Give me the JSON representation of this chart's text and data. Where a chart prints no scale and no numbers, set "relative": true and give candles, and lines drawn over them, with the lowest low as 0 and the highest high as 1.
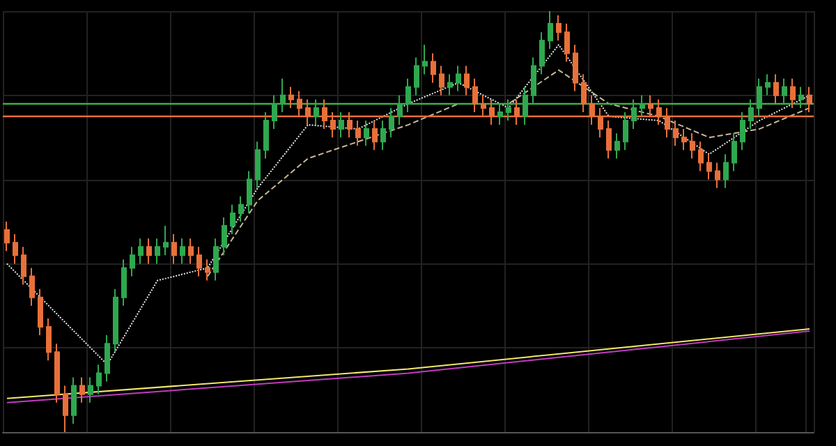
{
  "chart_data": {
    "type": "candlestick",
    "relative": true,
    "grid": true,
    "marker": "none",
    "categories": [
      null,
      null,
      null,
      null,
      null,
      null,
      null,
      null,
      null,
      null,
      null,
      null,
      null,
      null,
      null,
      null,
      null,
      null,
      null,
      null,
      null,
      null,
      null,
      null,
      null,
      null,
      null,
      null,
      null,
      null,
      null,
      null,
      null,
      null,
      null,
      null,
      null,
      null,
      null,
      null,
      null,
      null,
      null,
      null,
      null,
      null,
      null,
      null,
      null,
      null,
      null,
      null,
      null,
      null,
      null,
      null,
      null,
      null,
      null,
      null,
      null,
      null,
      null,
      null,
      null,
      null,
      null,
      null,
      null,
      null,
      null,
      null,
      null,
      null,
      null,
      null,
      null,
      null,
      null,
      null,
      null,
      null,
      null,
      null,
      null,
      null,
      null,
      null,
      null,
      null,
      null,
      null,
      null,
      null,
      null,
      null,
      null
    ],
    "colors": [
      "#e8703a",
      "#e8703a",
      "#e8703a",
      "#e8703a",
      "#e8703a",
      "#e8703a",
      "#e8703a",
      "#e8703a",
      "#2fa84f",
      "#e8703a",
      "#2fa84f",
      "#2fa84f",
      "#2fa84f",
      "#2fa84f",
      "#2fa84f",
      "#2fa84f",
      "#2fa84f",
      "#e8703a",
      "#2fa84f",
      "#2fa84f",
      "#e8703a",
      "#2fa84f",
      "#e8703a",
      "#e8703a",
      "#e8703a",
      "#2fa84f",
      "#2fa84f",
      "#2fa84f",
      "#2fa84f",
      "#2fa84f",
      "#2fa84f",
      "#2fa84f",
      "#2fa84f",
      "#2fa84f",
      "#e8703a",
      "#e8703a",
      "#e8703a",
      "#2fa84f",
      "#e8703a",
      "#e8703a",
      "#2fa84f",
      "#e8703a",
      "#e8703a",
      "#2fa84f",
      "#e8703a",
      "#2fa84f",
      "#2fa84f",
      "#2fa84f",
      "#2fa84f",
      "#2fa84f",
      "#2fa84f",
      "#e8703a",
      "#e8703a",
      "#2fa84f",
      "#2fa84f",
      "#e8703a",
      "#e8703a",
      "#e8703a",
      "#e8703a",
      "#2fa84f",
      "#2fa84f",
      "#e8703a",
      "#2fa84f",
      "#2fa84f",
      "#2fa84f",
      "#2fa84f",
      "#e8703a",
      "#e8703a",
      "#e8703a",
      "#e8703a",
      "#e8703a",
      "#e8703a",
      "#e8703a",
      "#2fa84f",
      "#2fa84f",
      "#2fa84f",
      "#2fa84f",
      "#e8703a",
      "#e8703a",
      "#e8703a",
      "#e8703a",
      "#e8703a",
      "#e8703a",
      "#e8703a",
      "#e8703a",
      "#e8703a",
      "#2fa84f",
      "#2fa84f",
      "#2fa84f",
      "#2fa84f",
      "#2fa84f",
      "#2fa84f",
      "#e8703a",
      "#2fa84f",
      "#e8703a",
      "#2fa84f",
      "#e8703a"
    ],
    "ohlc": [
      [
        0.48,
        0.5,
        0.43,
        0.45
      ],
      [
        0.45,
        0.47,
        0.4,
        0.42
      ],
      [
        0.42,
        0.44,
        0.35,
        0.37
      ],
      [
        0.37,
        0.39,
        0.3,
        0.32
      ],
      [
        0.32,
        0.34,
        0.23,
        0.25
      ],
      [
        0.25,
        0.27,
        0.17,
        0.19
      ],
      [
        0.19,
        0.21,
        0.07,
        0.09
      ],
      [
        0.09,
        0.11,
        0,
        0.04
      ],
      [
        0.04,
        0.13,
        0.02,
        0.11
      ],
      [
        0.11,
        0.13,
        0.07,
        0.09
      ],
      [
        0.09,
        0.13,
        0.07,
        0.11
      ],
      [
        0.11,
        0.16,
        0.09,
        0.14
      ],
      [
        0.14,
        0.23,
        0.12,
        0.21
      ],
      [
        0.21,
        0.34,
        0.19,
        0.32
      ],
      [
        0.32,
        0.41,
        0.3,
        0.39
      ],
      [
        0.39,
        0.44,
        0.37,
        0.42
      ],
      [
        0.42,
        0.46,
        0.4,
        0.44
      ],
      [
        0.44,
        0.46,
        0.4,
        0.42
      ],
      [
        0.42,
        0.46,
        0.4,
        0.44
      ],
      [
        0.44,
        0.49,
        0.42,
        0.45
      ],
      [
        0.45,
        0.47,
        0.4,
        0.42
      ],
      [
        0.42,
        0.46,
        0.4,
        0.44
      ],
      [
        0.44,
        0.46,
        0.4,
        0.42
      ],
      [
        0.42,
        0.44,
        0.37,
        0.39
      ],
      [
        0.39,
        0.41,
        0.36,
        0.38
      ],
      [
        0.38,
        0.46,
        0.36,
        0.44
      ],
      [
        0.44,
        0.51,
        0.42,
        0.49
      ],
      [
        0.49,
        0.54,
        0.47,
        0.52
      ],
      [
        0.52,
        0.56,
        0.5,
        0.54
      ],
      [
        0.54,
        0.62,
        0.52,
        0.6
      ],
      [
        0.6,
        0.69,
        0.58,
        0.67
      ],
      [
        0.67,
        0.76,
        0.65,
        0.74
      ],
      [
        0.74,
        0.8,
        0.72,
        0.78
      ],
      [
        0.78,
        0.84,
        0.76,
        0.8
      ],
      [
        0.8,
        0.82,
        0.77,
        0.79
      ],
      [
        0.79,
        0.81,
        0.75,
        0.77
      ],
      [
        0.77,
        0.79,
        0.73,
        0.75
      ],
      [
        0.75,
        0.79,
        0.73,
        0.77
      ],
      [
        0.77,
        0.79,
        0.72,
        0.74
      ],
      [
        0.74,
        0.76,
        0.7,
        0.72
      ],
      [
        0.72,
        0.76,
        0.7,
        0.74
      ],
      [
        0.74,
        0.76,
        0.7,
        0.72
      ],
      [
        0.72,
        0.74,
        0.68,
        0.7
      ],
      [
        0.7,
        0.74,
        0.68,
        0.72
      ],
      [
        0.72,
        0.74,
        0.67,
        0.69
      ],
      [
        0.69,
        0.74,
        0.67,
        0.72
      ],
      [
        0.72,
        0.77,
        0.7,
        0.75
      ],
      [
        0.75,
        0.8,
        0.73,
        0.78
      ],
      [
        0.78,
        0.84,
        0.76,
        0.82
      ],
      [
        0.82,
        0.89,
        0.8,
        0.87
      ],
      [
        0.87,
        0.92,
        0.85,
        0.88
      ],
      [
        0.88,
        0.9,
        0.83,
        0.85
      ],
      [
        0.85,
        0.87,
        0.8,
        0.82
      ],
      [
        0.82,
        0.85,
        0.8,
        0.83
      ],
      [
        0.83,
        0.87,
        0.81,
        0.85
      ],
      [
        0.85,
        0.87,
        0.8,
        0.82
      ],
      [
        0.82,
        0.84,
        0.76,
        0.78
      ],
      [
        0.78,
        0.8,
        0.75,
        0.77
      ],
      [
        0.77,
        0.79,
        0.73,
        0.75
      ],
      [
        0.75,
        0.78,
        0.73,
        0.76
      ],
      [
        0.76,
        0.79,
        0.74,
        0.77
      ],
      [
        0.77,
        0.79,
        0.73,
        0.75
      ],
      [
        0.75,
        0.82,
        0.73,
        0.8
      ],
      [
        0.8,
        0.89,
        0.78,
        0.87
      ],
      [
        0.87,
        0.95,
        0.85,
        0.93
      ],
      [
        0.93,
        1,
        0.91,
        0.97
      ],
      [
        0.97,
        0.99,
        0.93,
        0.95
      ],
      [
        0.95,
        0.97,
        0.88,
        0.9
      ],
      [
        0.9,
        0.92,
        0.81,
        0.83
      ],
      [
        0.83,
        0.85,
        0.76,
        0.78
      ],
      [
        0.78,
        0.8,
        0.73,
        0.75
      ],
      [
        0.75,
        0.77,
        0.7,
        0.72
      ],
      [
        0.72,
        0.74,
        0.65,
        0.67
      ],
      [
        0.67,
        0.71,
        0.65,
        0.69
      ],
      [
        0.69,
        0.76,
        0.67,
        0.74
      ],
      [
        0.74,
        0.79,
        0.72,
        0.77
      ],
      [
        0.77,
        0.8,
        0.75,
        0.78
      ],
      [
        0.78,
        0.8,
        0.75,
        0.77
      ],
      [
        0.77,
        0.79,
        0.73,
        0.75
      ],
      [
        0.75,
        0.77,
        0.7,
        0.72
      ],
      [
        0.72,
        0.74,
        0.68,
        0.7
      ],
      [
        0.7,
        0.72,
        0.67,
        0.69
      ],
      [
        0.69,
        0.71,
        0.65,
        0.67
      ],
      [
        0.67,
        0.69,
        0.62,
        0.64
      ],
      [
        0.64,
        0.66,
        0.6,
        0.62
      ],
      [
        0.62,
        0.64,
        0.58,
        0.6
      ],
      [
        0.6,
        0.66,
        0.58,
        0.64
      ],
      [
        0.64,
        0.71,
        0.62,
        0.69
      ],
      [
        0.69,
        0.76,
        0.67,
        0.74
      ],
      [
        0.74,
        0.79,
        0.72,
        0.77
      ],
      [
        0.77,
        0.84,
        0.75,
        0.82
      ],
      [
        0.82,
        0.85,
        0.8,
        0.83
      ],
      [
        0.83,
        0.85,
        0.78,
        0.8
      ],
      [
        0.8,
        0.84,
        0.78,
        0.82
      ],
      [
        0.82,
        0.84,
        0.77,
        0.79
      ],
      [
        0.79,
        0.82,
        0.77,
        0.8
      ],
      [
        0.8,
        0.82,
        0.76,
        0.78
      ]
    ],
    "series": [
      {
        "type": "line",
        "color": "#e8e8e8",
        "line_style": "dotted",
        "values": [
          0.4,
          null,
          null,
          null,
          null,
          null,
          0.28,
          null,
          null,
          null,
          null,
          null,
          0.16,
          null,
          null,
          null,
          null,
          null,
          0.36,
          null,
          null,
          null,
          null,
          null,
          0.39,
          null,
          null,
          null,
          null,
          null,
          0.58,
          null,
          null,
          null,
          null,
          null,
          0.73,
          null,
          null,
          null,
          null,
          null,
          0.72,
          null,
          null,
          null,
          null,
          null,
          0.78,
          null,
          null,
          null,
          null,
          null,
          0.83,
          null,
          null,
          null,
          null,
          null,
          0.77,
          null,
          null,
          null,
          null,
          null,
          0.92,
          null,
          null,
          null,
          null,
          null,
          0.75,
          null,
          null,
          null,
          null,
          null,
          0.74,
          null,
          null,
          null,
          null,
          null,
          0.66,
          null,
          null,
          null,
          null,
          null,
          0.74,
          null,
          null,
          null,
          null,
          null,
          0.8
        ]
      },
      {
        "type": "line",
        "color": "#c8b89a",
        "line_style": "dashed",
        "values": [
          null,
          null,
          null,
          null,
          null,
          null,
          null,
          null,
          null,
          null,
          null,
          null,
          null,
          null,
          null,
          null,
          null,
          null,
          null,
          null,
          null,
          null,
          null,
          null,
          0.37,
          null,
          null,
          null,
          null,
          null,
          0.55,
          null,
          null,
          null,
          null,
          null,
          0.65,
          null,
          null,
          null,
          null,
          null,
          0.69,
          null,
          null,
          null,
          null,
          null,
          0.73,
          null,
          null,
          null,
          null,
          null,
          0.78,
          null,
          null,
          null,
          null,
          null,
          0.78,
          null,
          null,
          null,
          null,
          null,
          0.86,
          null,
          null,
          null,
          null,
          null,
          0.78,
          null,
          null,
          null,
          null,
          null,
          0.75,
          null,
          null,
          null,
          null,
          null,
          0.7,
          null,
          null,
          null,
          null,
          null,
          0.72,
          null,
          null,
          null,
          null,
          null,
          0.77
        ]
      },
      {
        "type": "line",
        "color": "#f2e86a",
        "line_style": "solid",
        "values": [
          0.08,
          null,
          null,
          null,
          null,
          null,
          null,
          null,
          null,
          null,
          null,
          null,
          null,
          null,
          null,
          null,
          null,
          null,
          null,
          null,
          null,
          null,
          null,
          null,
          null,
          null,
          null,
          null,
          null,
          null,
          null,
          null,
          null,
          null,
          null,
          null,
          null,
          null,
          null,
          null,
          null,
          null,
          null,
          null,
          null,
          null,
          null,
          null,
          0.15,
          null,
          null,
          null,
          null,
          null,
          null,
          null,
          null,
          null,
          null,
          null,
          null,
          null,
          null,
          null,
          null,
          null,
          null,
          null,
          null,
          null,
          null,
          null,
          null,
          null,
          null,
          null,
          null,
          null,
          null,
          null,
          null,
          null,
          null,
          null,
          null,
          null,
          null,
          null,
          null,
          null,
          null,
          null,
          null,
          null,
          null,
          null,
          0.245
        ]
      },
      {
        "type": "line",
        "color": "#c03cc0",
        "line_style": "solid",
        "values": [
          0.07,
          null,
          null,
          null,
          null,
          null,
          null,
          null,
          null,
          null,
          null,
          null,
          null,
          null,
          null,
          null,
          null,
          null,
          null,
          null,
          null,
          null,
          null,
          null,
          null,
          null,
          null,
          null,
          null,
          null,
          null,
          null,
          null,
          null,
          null,
          null,
          null,
          null,
          null,
          null,
          null,
          null,
          null,
          null,
          null,
          null,
          null,
          null,
          0.14,
          null,
          null,
          null,
          null,
          null,
          null,
          null,
          null,
          null,
          null,
          null,
          null,
          null,
          null,
          null,
          null,
          null,
          null,
          null,
          null,
          null,
          null,
          null,
          null,
          null,
          null,
          null,
          null,
          null,
          null,
          null,
          null,
          null,
          null,
          null,
          null,
          null,
          null,
          null,
          null,
          null,
          null,
          null,
          null,
          null,
          null,
          null,
          0.24
        ]
      }
    ],
    "ref_lines": [
      {
        "axis": "y",
        "value": 0.775,
        "color": "#3cb043"
      },
      {
        "axis": "y",
        "value": 0.752,
        "color": "#e8703a"
      }
    ]
  }
}
